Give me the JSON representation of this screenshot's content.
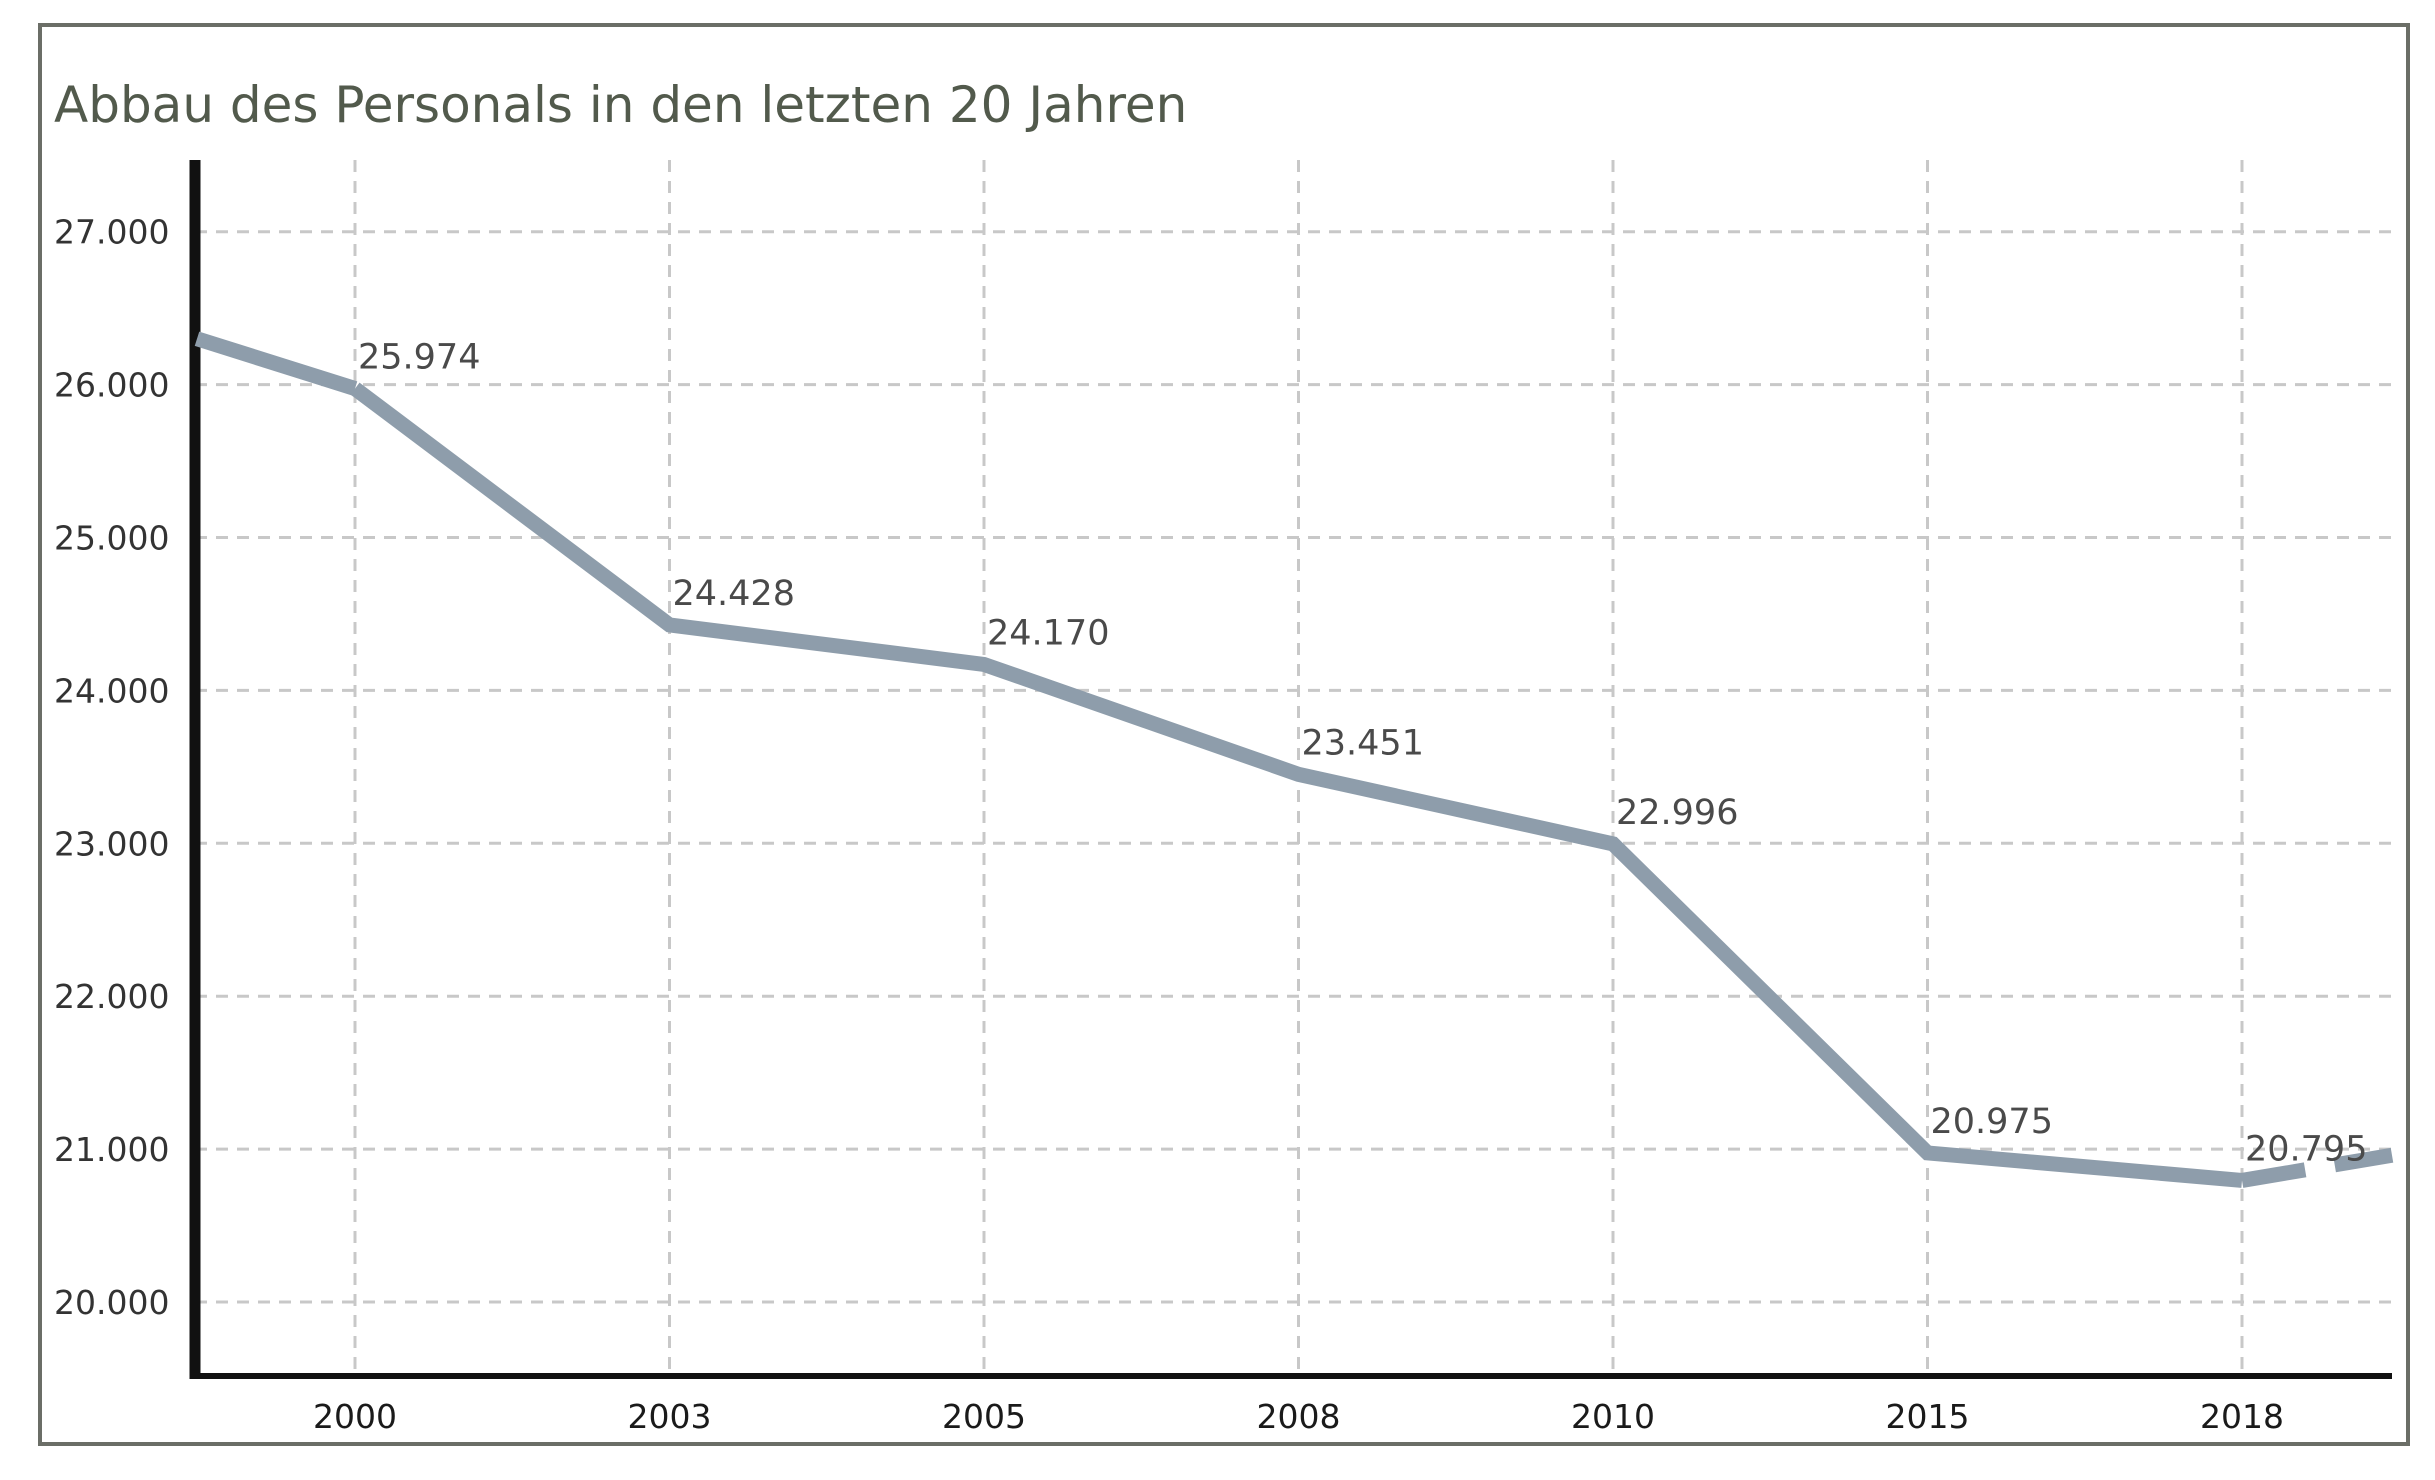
{
  "chart_data": {
    "type": "line",
    "title": "Abbau des Personals in den letzten 20 Jahren",
    "xlabel": "",
    "ylabel": "",
    "categories": [
      "2000",
      "2003",
      "2005",
      "2008",
      "2010",
      "2015",
      "2018"
    ],
    "values": [
      25974,
      24428,
      24170,
      23451,
      22996,
      20975,
      20795
    ],
    "data_labels": [
      "25.974",
      "24.428",
      "24.170",
      "23.451",
      "22.996",
      "20.975",
      "20.795"
    ],
    "y_ticks": [
      20000,
      21000,
      22000,
      23000,
      24000,
      25000,
      26000,
      27000
    ],
    "y_tick_labels": [
      "20.000",
      "21.000",
      "22.000",
      "23.000",
      "24.000",
      "25.000",
      "26.000",
      "27.000"
    ],
    "ylim": [
      19500,
      27500
    ],
    "lead_in_value": 26300,
    "projection_value": 20960,
    "grid": true,
    "line_color": "#8e9dab",
    "grid_color": "#c8c8c8",
    "axis_color": "#111111"
  }
}
